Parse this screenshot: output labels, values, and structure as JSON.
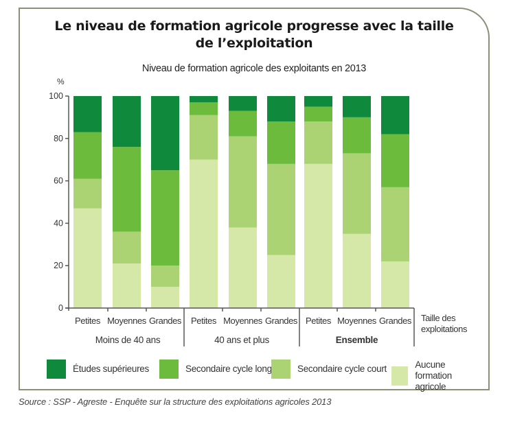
{
  "title_line1": "Le niveau de formation agricole progresse avec la taille",
  "title_line2": "de l’exploitation",
  "source": "Source : SSP - Agreste - Enquête sur la structure des exploitations agricoles 2013",
  "colors": {
    "etudes_superieures": "#0f8a3c",
    "secondaire_cycle_long": "#6cbb3c",
    "secondaire_cycle_court": "#acd373",
    "aucune_formation": "#d6e8a8",
    "axis": "#555555",
    "frame": "#8a8f76"
  },
  "chart_data": {
    "type": "bar",
    "stacked": true,
    "title": "Niveau de formation agricole des exploitants en 2013",
    "ylabel": "%",
    "xlabel": "Taille des exploitations",
    "ylim": [
      0,
      100
    ],
    "yticks": [
      0,
      20,
      40,
      60,
      80,
      100
    ],
    "grid": false,
    "legend_position": "bottom",
    "groups": [
      {
        "label": "Moins de 40 ans",
        "bold": false
      },
      {
        "label": "40 ans et plus",
        "bold": false
      },
      {
        "label": "Ensemble",
        "bold": true
      }
    ],
    "categories": [
      "Petites",
      "Moyennes",
      "Grandes",
      "Petites",
      "Moyennes",
      "Grandes",
      "Petites",
      "Moyennes",
      "Grandes"
    ],
    "series": [
      {
        "name": "Aucune formation agricole",
        "key": "aucune_formation",
        "values": [
          47,
          21,
          10,
          70,
          38,
          25,
          68,
          35,
          22
        ]
      },
      {
        "name": "Secondaire cycle court",
        "key": "secondaire_cycle_court",
        "values": [
          14,
          15,
          10,
          21,
          43,
          43,
          20,
          38,
          35
        ]
      },
      {
        "name": "Secondaire cycle long",
        "key": "secondaire_cycle_long",
        "values": [
          22,
          40,
          45,
          6,
          12,
          20,
          7,
          17,
          25
        ]
      },
      {
        "name": "Études supérieures",
        "key": "etudes_superieures",
        "values": [
          17,
          24,
          35,
          3,
          7,
          12,
          5,
          10,
          18
        ]
      }
    ]
  },
  "legend": [
    {
      "label": "Études supérieures",
      "key": "etudes_superieures"
    },
    {
      "label": "Secondaire cycle long",
      "key": "secondaire_cycle_long"
    },
    {
      "label": "Secondaire cycle court",
      "key": "secondaire_cycle_court"
    },
    {
      "label": "Aucune formation agricole",
      "key": "aucune_formation"
    }
  ],
  "xlabel_line1": "Taille des",
  "xlabel_line2": "exploitations"
}
